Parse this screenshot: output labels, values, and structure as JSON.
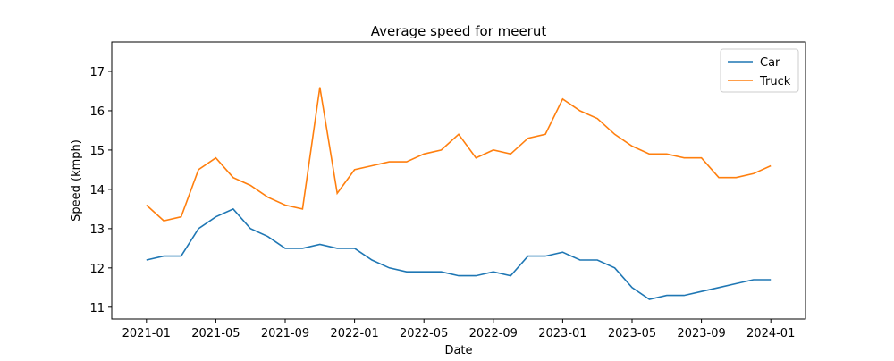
{
  "chart_data": {
    "type": "line",
    "title": "Average speed for meerut",
    "xlabel": "Date",
    "ylabel": "Speed (kmph)",
    "x": [
      "2021-01",
      "2021-02",
      "2021-03",
      "2021-04",
      "2021-05",
      "2021-06",
      "2021-07",
      "2021-08",
      "2021-09",
      "2021-10",
      "2021-11",
      "2021-12",
      "2022-01",
      "2022-02",
      "2022-03",
      "2022-04",
      "2022-05",
      "2022-06",
      "2022-07",
      "2022-08",
      "2022-09",
      "2022-10",
      "2022-11",
      "2022-12",
      "2023-01",
      "2023-02",
      "2023-03",
      "2023-04",
      "2023-05",
      "2023-06",
      "2023-07",
      "2023-08",
      "2023-09",
      "2023-10",
      "2023-11",
      "2023-12",
      "2024-01"
    ],
    "series": [
      {
        "name": "Car",
        "color": "#1f77b4",
        "values": [
          12.2,
          12.3,
          12.3,
          13.0,
          13.3,
          13.5,
          13.0,
          12.8,
          12.5,
          12.5,
          12.6,
          12.5,
          12.5,
          12.2,
          12.0,
          11.9,
          11.9,
          11.9,
          11.8,
          11.8,
          11.9,
          11.8,
          12.3,
          12.3,
          12.4,
          12.2,
          12.2,
          12.0,
          11.5,
          11.2,
          11.3,
          11.3,
          11.4,
          11.5,
          11.6,
          11.7,
          11.7
        ]
      },
      {
        "name": "Truck",
        "color": "#ff7f0e",
        "values": [
          13.6,
          13.2,
          13.3,
          14.5,
          14.8,
          14.3,
          14.1,
          13.8,
          13.6,
          13.5,
          16.6,
          13.9,
          14.5,
          14.6,
          14.7,
          14.7,
          14.9,
          15.0,
          15.4,
          14.8,
          15.0,
          14.9,
          15.3,
          15.4,
          16.3,
          16.0,
          15.8,
          15.4,
          15.1,
          14.9,
          14.9,
          14.8,
          14.8,
          14.3,
          14.3,
          14.4,
          14.6
        ]
      }
    ],
    "xlim": [
      "2020-11",
      "2024-03"
    ],
    "xticks": [
      "2021-01",
      "2021-05",
      "2021-09",
      "2022-01",
      "2022-05",
      "2022-09",
      "2023-01",
      "2023-05",
      "2023-09",
      "2024-01"
    ],
    "ylim": [
      10.7,
      17.75
    ],
    "yticks": [
      11,
      12,
      13,
      14,
      15,
      16,
      17
    ],
    "legend": "upper right"
  }
}
